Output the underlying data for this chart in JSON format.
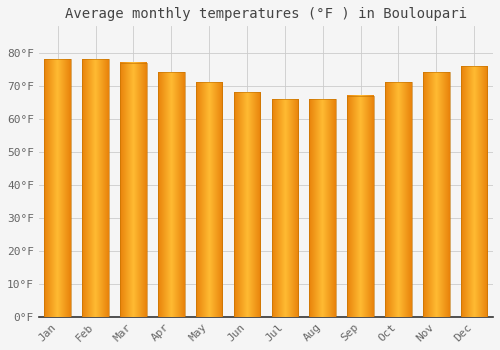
{
  "title": "Average monthly temperatures (°F ) in Bouloupari",
  "months": [
    "Jan",
    "Feb",
    "Mar",
    "Apr",
    "May",
    "Jun",
    "Jul",
    "Aug",
    "Sep",
    "Oct",
    "Nov",
    "Dec"
  ],
  "values": [
    78,
    78,
    77,
    74,
    71,
    68,
    66,
    66,
    67,
    71,
    74,
    76
  ],
  "bar_color_left": "#E8820A",
  "bar_color_center": "#FFBB33",
  "bar_color_right": "#E8820A",
  "background_color": "#F5F5F5",
  "plot_bg_color": "#F5F5F5",
  "ylim": [
    0,
    88
  ],
  "yticks": [
    0,
    10,
    20,
    30,
    40,
    50,
    60,
    70,
    80
  ],
  "ytick_labels": [
    "0°F",
    "10°F",
    "20°F",
    "30°F",
    "40°F",
    "50°F",
    "60°F",
    "70°F",
    "80°F"
  ],
  "title_fontsize": 10,
  "tick_fontsize": 8,
  "grid_color": "#CCCCCC",
  "title_color": "#444444",
  "bar_width": 0.7,
  "spine_color": "#333333"
}
